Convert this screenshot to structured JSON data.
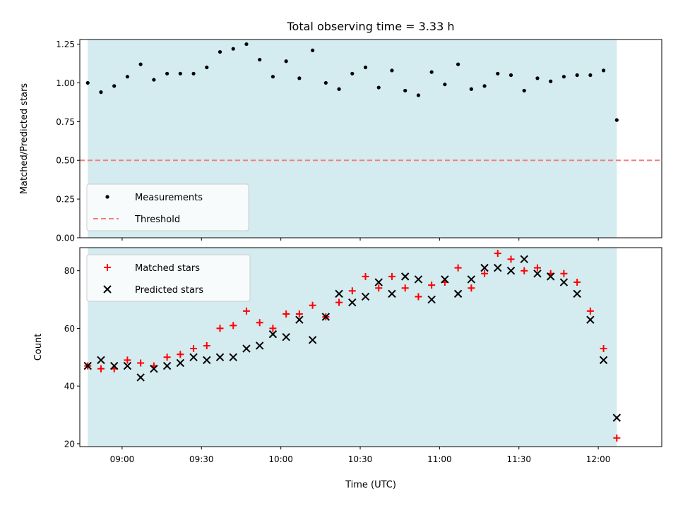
{
  "title": "Total observing time = 3.33 h",
  "colors": {
    "shade": "#d4ebf0",
    "measurement": "#000000",
    "threshold": "#f07f7f",
    "matched": "#ff0000",
    "predicted": "#000000"
  },
  "chart_data": [
    {
      "type": "scatter",
      "ylabel": "Matched/Predicted stars",
      "ylim": [
        0,
        1.28
      ],
      "yticks": [
        0.0,
        0.25,
        0.5,
        0.75,
        1.0,
        1.25
      ],
      "ytick_labels": [
        "0.00",
        "0.25",
        "0.50",
        "0.75",
        "1.00",
        "1.25"
      ],
      "xlim": [
        "08:44",
        "12:24"
      ],
      "xticks": [
        "09:00",
        "09:30",
        "10:00",
        "10:30",
        "11:00",
        "11:30",
        "12:00"
      ],
      "shaded_span": [
        "08:47",
        "12:07"
      ],
      "legend": {
        "position": "lower left",
        "entries": [
          "Measurements",
          "Threshold"
        ]
      },
      "threshold": {
        "name": "Threshold",
        "value": 0.5
      },
      "series": [
        {
          "name": "Measurements",
          "x": [
            "08:47",
            "08:52",
            "08:57",
            "09:02",
            "09:07",
            "09:12",
            "09:17",
            "09:22",
            "09:27",
            "09:32",
            "09:37",
            "09:42",
            "09:47",
            "09:52",
            "09:57",
            "10:02",
            "10:07",
            "10:12",
            "10:17",
            "10:22",
            "10:27",
            "10:32",
            "10:37",
            "10:42",
            "10:47",
            "10:52",
            "10:57",
            "11:02",
            "11:07",
            "11:12",
            "11:17",
            "11:22",
            "11:27",
            "11:32",
            "11:37",
            "11:42",
            "11:47",
            "11:52",
            "11:57",
            "12:02",
            "12:07"
          ],
          "y": [
            1.0,
            0.94,
            0.98,
            1.04,
            1.12,
            1.02,
            1.06,
            1.06,
            1.06,
            1.1,
            1.2,
            1.22,
            1.25,
            1.15,
            1.04,
            1.14,
            1.03,
            1.21,
            1.0,
            0.96,
            1.06,
            1.1,
            0.97,
            1.08,
            0.95,
            0.92,
            1.07,
            0.99,
            1.12,
            0.96,
            0.98,
            1.06,
            1.05,
            0.95,
            1.03,
            1.01,
            1.04,
            1.05,
            1.05,
            1.08,
            0.76
          ]
        }
      ]
    },
    {
      "type": "scatter",
      "xlabel": "Time (UTC)",
      "ylabel": "Count",
      "ylim": [
        19,
        88
      ],
      "yticks": [
        20,
        40,
        60,
        80
      ],
      "ytick_labels": [
        "20",
        "40",
        "60",
        "80"
      ],
      "xlim": [
        "08:44",
        "12:24"
      ],
      "xticks": [
        "09:00",
        "09:30",
        "10:00",
        "10:30",
        "11:00",
        "11:30",
        "12:00"
      ],
      "xtick_labels": [
        "09:00",
        "09:30",
        "10:00",
        "10:30",
        "11:00",
        "11:30",
        "12:00"
      ],
      "shaded_span": [
        "08:47",
        "12:07"
      ],
      "legend": {
        "position": "upper left",
        "entries": [
          "Matched stars",
          "Predicted stars"
        ]
      },
      "series": [
        {
          "name": "Matched stars",
          "marker": "+",
          "x": [
            "08:47",
            "08:52",
            "08:57",
            "09:02",
            "09:07",
            "09:12",
            "09:17",
            "09:22",
            "09:27",
            "09:32",
            "09:37",
            "09:42",
            "09:47",
            "09:52",
            "09:57",
            "10:02",
            "10:07",
            "10:12",
            "10:17",
            "10:22",
            "10:27",
            "10:32",
            "10:37",
            "10:42",
            "10:47",
            "10:52",
            "10:57",
            "11:02",
            "11:07",
            "11:12",
            "11:17",
            "11:22",
            "11:27",
            "11:32",
            "11:37",
            "11:42",
            "11:47",
            "11:52",
            "11:57",
            "12:02",
            "12:07"
          ],
          "y": [
            47,
            46,
            46,
            49,
            48,
            47,
            50,
            51,
            53,
            54,
            60,
            61,
            66,
            62,
            60,
            65,
            65,
            68,
            64,
            69,
            73,
            78,
            74,
            78,
            74,
            71,
            75,
            76,
            81,
            74,
            79,
            86,
            84,
            80,
            81,
            79,
            79,
            76,
            66,
            53,
            22
          ]
        },
        {
          "name": "Predicted stars",
          "marker": "x",
          "x": [
            "08:47",
            "08:52",
            "08:57",
            "09:02",
            "09:07",
            "09:12",
            "09:17",
            "09:22",
            "09:27",
            "09:32",
            "09:37",
            "09:42",
            "09:47",
            "09:52",
            "09:57",
            "10:02",
            "10:07",
            "10:12",
            "10:17",
            "10:22",
            "10:27",
            "10:32",
            "10:37",
            "10:42",
            "10:47",
            "10:52",
            "10:57",
            "11:02",
            "11:07",
            "11:12",
            "11:17",
            "11:22",
            "11:27",
            "11:32",
            "11:37",
            "11:42",
            "11:47",
            "11:52",
            "11:57",
            "12:02",
            "12:07"
          ],
          "y": [
            47,
            49,
            47,
            47,
            43,
            46,
            47,
            48,
            50,
            49,
            50,
            50,
            53,
            54,
            58,
            57,
            63,
            56,
            64,
            72,
            69,
            71,
            76,
            72,
            78,
            77,
            70,
            77,
            72,
            77,
            81,
            81,
            80,
            84,
            79,
            78,
            76,
            72,
            63,
            49,
            29
          ]
        }
      ]
    }
  ]
}
